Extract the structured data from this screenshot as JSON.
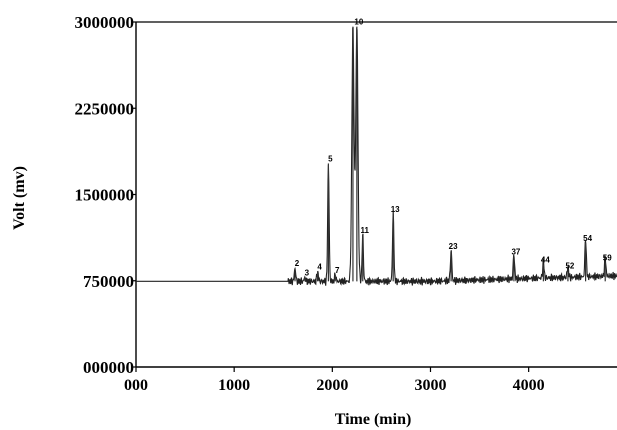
{
  "chart_data": {
    "type": "line",
    "xlabel": "Time (min)",
    "ylabel": "Volt (mv)",
    "xlim": [
      0,
      4900
    ],
    "ylim": [
      0,
      3000000
    ],
    "x_ticks": [
      {
        "value": 0,
        "label": "000"
      },
      {
        "value": 1000,
        "label": "1000"
      },
      {
        "value": 2000,
        "label": "2000"
      },
      {
        "value": 3000,
        "label": "3000"
      },
      {
        "value": 4000,
        "label": "4000"
      }
    ],
    "y_ticks": [
      {
        "value": 0,
        "label": "000000"
      },
      {
        "value": 750000,
        "label": "750000"
      },
      {
        "value": 1500000,
        "label": "1500000"
      },
      {
        "value": 2250000,
        "label": "2250000"
      },
      {
        "value": 3000000,
        "label": "3000000"
      }
    ],
    "grid": false,
    "baseline": 745000,
    "peaks": [
      {
        "x": 1620,
        "y": 860000,
        "label": "2"
      },
      {
        "x": 1720,
        "y": 780000,
        "label": "3"
      },
      {
        "x": 1850,
        "y": 830000,
        "label": "4"
      },
      {
        "x": 1960,
        "y": 1770000,
        "label": "5"
      },
      {
        "x": 2030,
        "y": 800000,
        "label": "7"
      },
      {
        "x": 2210,
        "y": 2960000,
        "label": ""
      },
      {
        "x": 2250,
        "y": 2960000,
        "label": "10"
      },
      {
        "x": 2310,
        "y": 1150000,
        "label": "11"
      },
      {
        "x": 2620,
        "y": 1330000,
        "label": "13"
      },
      {
        "x": 3210,
        "y": 1010000,
        "label": "23"
      },
      {
        "x": 3850,
        "y": 960000,
        "label": "37"
      },
      {
        "x": 4150,
        "y": 890000,
        "label": "44"
      },
      {
        "x": 4400,
        "y": 840000,
        "label": "52"
      },
      {
        "x": 4580,
        "y": 1080000,
        "label": "54"
      },
      {
        "x": 4780,
        "y": 910000,
        "label": "59"
      }
    ]
  }
}
